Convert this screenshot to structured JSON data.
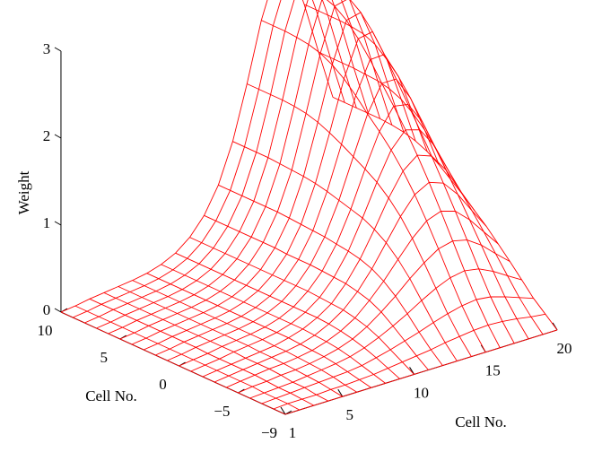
{
  "chart_data": {
    "type": "surface",
    "xlabel": "Cell No.",
    "ylabel": "Cell No.",
    "zlabel": "Weight",
    "x_ticks": [
      "1",
      "5",
      "10",
      "15",
      "20"
    ],
    "y_ticks": [
      "−9",
      "−5",
      "0",
      "5",
      "10"
    ],
    "z_ticks": [
      "0",
      "1",
      "2",
      "3"
    ],
    "x_range": [
      1,
      20
    ],
    "y_range": [
      -9,
      10
    ],
    "z_range": [
      0,
      3
    ],
    "mesh_color": "#ff0000",
    "grid": false,
    "surface": {
      "x": [
        1,
        2,
        3,
        4,
        5,
        6,
        7,
        8,
        9,
        10,
        11,
        12,
        13,
        14,
        15,
        16,
        17,
        18,
        19,
        20
      ],
      "y": [
        -9,
        -8,
        -7,
        -6,
        -5,
        -4,
        -3,
        -2,
        -1,
        0,
        1,
        2,
        3,
        4,
        5,
        6,
        7,
        8,
        9,
        10
      ],
      "z": [
        [
          0.0,
          0.0,
          0.0,
          0.0,
          0.0,
          0.0,
          0.0,
          0.0,
          0.0,
          0.0,
          0.0,
          0.0,
          0.0,
          0.0,
          0.0,
          0.0,
          0.0,
          0.0,
          0.0,
          0.0
        ],
        [
          0.0,
          0.01,
          0.01,
          0.01,
          0.02,
          0.02,
          0.03,
          0.04,
          0.06,
          0.08,
          0.1,
          0.12,
          0.15,
          0.17,
          0.19,
          0.2,
          0.19,
          0.17,
          0.14,
          0.12
        ],
        [
          0.0,
          0.01,
          0.02,
          0.03,
          0.04,
          0.05,
          0.06,
          0.08,
          0.12,
          0.16,
          0.21,
          0.26,
          0.32,
          0.37,
          0.41,
          0.43,
          0.41,
          0.36,
          0.3,
          0.24
        ],
        [
          0.0,
          0.01,
          0.02,
          0.03,
          0.05,
          0.07,
          0.09,
          0.12,
          0.17,
          0.24,
          0.32,
          0.41,
          0.51,
          0.6,
          0.67,
          0.7,
          0.67,
          0.59,
          0.49,
          0.39
        ],
        [
          0.0,
          0.02,
          0.03,
          0.05,
          0.06,
          0.08,
          0.11,
          0.15,
          0.21,
          0.3,
          0.42,
          0.55,
          0.7,
          0.83,
          0.94,
          0.98,
          0.94,
          0.83,
          0.68,
          0.54
        ],
        [
          0.0,
          0.02,
          0.04,
          0.06,
          0.07,
          0.09,
          0.12,
          0.17,
          0.24,
          0.34,
          0.49,
          0.66,
          0.86,
          1.05,
          1.2,
          1.26,
          1.21,
          1.06,
          0.87,
          0.68
        ],
        [
          0.0,
          0.02,
          0.04,
          0.06,
          0.08,
          0.1,
          0.13,
          0.18,
          0.26,
          0.37,
          0.53,
          0.74,
          0.99,
          1.24,
          1.44,
          1.53,
          1.47,
          1.29,
          1.05,
          0.82
        ],
        [
          0.0,
          0.02,
          0.04,
          0.06,
          0.08,
          0.1,
          0.14,
          0.19,
          0.27,
          0.38,
          0.56,
          0.79,
          1.08,
          1.39,
          1.65,
          1.78,
          1.72,
          1.51,
          1.22,
          0.94
        ],
        [
          0.0,
          0.02,
          0.04,
          0.07,
          0.09,
          0.11,
          0.14,
          0.19,
          0.27,
          0.39,
          0.57,
          0.82,
          1.15,
          1.51,
          1.83,
          2.01,
          1.96,
          1.73,
          1.39,
          1.06
        ],
        [
          0.0,
          0.02,
          0.04,
          0.07,
          0.09,
          0.11,
          0.14,
          0.19,
          0.27,
          0.4,
          0.58,
          0.84,
          1.19,
          1.6,
          1.98,
          2.22,
          2.19,
          1.94,
          1.56,
          1.17
        ],
        [
          0.0,
          0.02,
          0.05,
          0.07,
          0.09,
          0.11,
          0.14,
          0.19,
          0.27,
          0.4,
          0.59,
          0.86,
          1.23,
          1.68,
          2.12,
          2.42,
          2.42,
          2.15,
          1.73,
          1.28
        ],
        [
          0.0,
          0.02,
          0.05,
          0.07,
          0.09,
          0.11,
          0.14,
          0.19,
          0.27,
          0.4,
          0.59,
          0.87,
          1.27,
          1.76,
          2.27,
          2.63,
          2.64,
          2.33,
          1.86,
          1.37
        ],
        [
          0.0,
          0.02,
          0.05,
          0.07,
          0.09,
          0.11,
          0.14,
          0.19,
          0.27,
          0.4,
          0.59,
          0.88,
          1.3,
          1.83,
          2.4,
          2.81,
          2.84,
          2.47,
          1.96,
          1.43
        ],
        [
          0.0,
          0.02,
          0.05,
          0.07,
          0.09,
          0.11,
          0.14,
          0.19,
          0.27,
          0.4,
          0.6,
          0.89,
          1.32,
          1.89,
          2.5,
          2.96,
          3.0,
          2.58,
          2.02,
          1.47
        ],
        [
          0.0,
          0.02,
          0.05,
          0.07,
          0.09,
          0.11,
          0.14,
          0.19,
          0.27,
          0.4,
          0.6,
          0.9,
          1.33,
          1.93,
          2.57,
          3.06,
          3.1,
          2.64,
          2.05,
          1.49
        ],
        [
          0.0,
          0.02,
          0.05,
          0.07,
          0.09,
          0.11,
          0.14,
          0.19,
          0.27,
          0.4,
          0.6,
          0.9,
          1.34,
          1.95,
          2.61,
          3.11,
          3.15,
          2.66,
          2.06,
          1.5
        ],
        [
          0.0,
          0.02,
          0.05,
          0.07,
          0.09,
          0.11,
          0.14,
          0.19,
          0.27,
          0.4,
          0.6,
          0.9,
          1.35,
          1.96,
          2.63,
          3.13,
          3.17,
          2.67,
          2.07,
          1.5
        ],
        [
          0.0,
          0.02,
          0.05,
          0.07,
          0.09,
          0.11,
          0.14,
          0.19,
          0.27,
          0.4,
          0.6,
          0.9,
          1.35,
          1.96,
          2.64,
          3.14,
          3.18,
          2.67,
          2.07,
          1.5
        ],
        [
          0.0,
          0.02,
          0.05,
          0.07,
          0.09,
          0.11,
          0.14,
          0.19,
          0.27,
          0.4,
          0.6,
          0.9,
          1.35,
          1.96,
          2.64,
          3.14,
          3.18,
          2.67,
          2.07,
          1.5
        ],
        [
          0.0,
          0.02,
          0.05,
          0.07,
          0.09,
          0.11,
          0.14,
          0.19,
          0.27,
          0.4,
          0.6,
          0.9,
          1.35,
          1.96,
          2.64,
          3.14,
          3.18,
          2.67,
          2.07,
          1.5
        ]
      ]
    }
  }
}
